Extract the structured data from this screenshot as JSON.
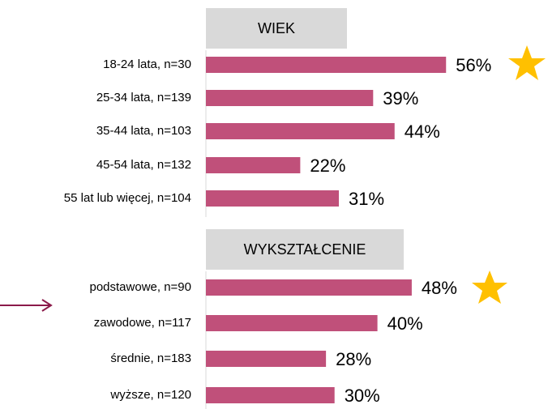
{
  "chart_data": [
    {
      "type": "bar",
      "orientation": "horizontal",
      "title": "WIEK",
      "color": "#c0507a",
      "categories": [
        "18-24 lata, n=30",
        "25-34 lata, n=139",
        "35-44 lata, n=103",
        "45-54 lata, n=132",
        "55 lat lub więcej, n=104"
      ],
      "values": [
        56,
        39,
        44,
        22,
        31
      ],
      "value_labels": [
        "56%",
        "39%",
        "44%",
        "22%",
        "31%"
      ]
    },
    {
      "type": "bar",
      "orientation": "horizontal",
      "title": "WYKSZTAŁCENIE",
      "color": "#c0507a",
      "categories": [
        "podstawowe, n=90",
        "zawodowe, n=117",
        "średnie, n=183",
        "wyższe, n=120"
      ],
      "values": [
        48,
        40,
        28,
        30
      ],
      "value_labels": [
        "48%",
        "40%",
        "28%",
        "30%"
      ]
    }
  ]
}
